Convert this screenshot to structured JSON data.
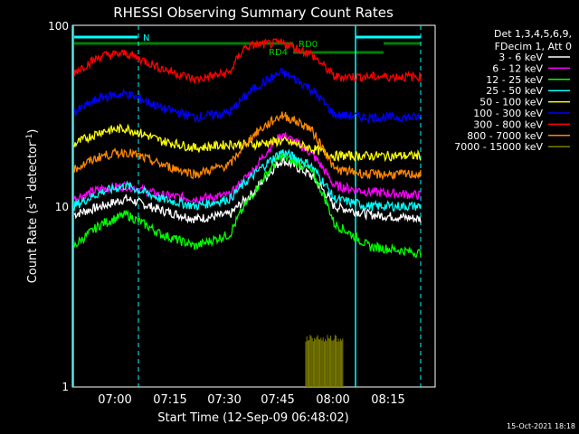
{
  "chart_data": {
    "type": "line",
    "title": "RHESSI Observing Summary Count Rates",
    "xlabel": "Start Time (12-Sep-09 06:48:02)",
    "ylabel": "Count Rate (s⁻¹ detector⁻¹)",
    "ylabel_main": "Count Rate (s",
    "ylabel_sup1": "-1",
    "ylabel_mid": " detector",
    "ylabel_sup2": "-1",
    "ylabel_end": ")",
    "yscale": "log",
    "ylim": [
      1,
      100
    ],
    "xlim": [
      "06:48:02",
      "08:30:00"
    ],
    "x_ticks": [
      "07:00",
      "07:15",
      "07:30",
      "07:45",
      "08:00",
      "08:15"
    ],
    "y_ticks": [
      "1",
      "10",
      "100"
    ],
    "footer_date": "15-Oct-2021 18:18",
    "legend": {
      "header1": "Det 1,3,4,5,6,9,",
      "header2": "FDecim 1, Att 0",
      "placement": "right"
    },
    "annotations": {
      "night_label": "N",
      "rd0_label": "RD0",
      "rd4_label": "RD4"
    },
    "series": [
      {
        "name": "3 - 6 keV",
        "color": "#ffffff",
        "values": [
          [
            0,
            9
          ],
          [
            8,
            10
          ],
          [
            15,
            11
          ],
          [
            25,
            9.5
          ],
          [
            35,
            8.5
          ],
          [
            45,
            9
          ],
          [
            52,
            12
          ],
          [
            60,
            18
          ],
          [
            68,
            15
          ],
          [
            75,
            10
          ],
          [
            85,
            9
          ],
          [
            100,
            8.5
          ]
        ]
      },
      {
        "name": "6 - 12 keV",
        "color": "#ff00ff",
        "values": [
          [
            0,
            11
          ],
          [
            8,
            12.5
          ],
          [
            15,
            13
          ],
          [
            25,
            11.5
          ],
          [
            35,
            11
          ],
          [
            45,
            11.5
          ],
          [
            52,
            16
          ],
          [
            60,
            25
          ],
          [
            68,
            20
          ],
          [
            75,
            13
          ],
          [
            85,
            12
          ],
          [
            100,
            11.5
          ]
        ]
      },
      {
        "name": "12 - 25 keV",
        "color": "#00ff00",
        "values": [
          [
            0,
            6
          ],
          [
            8,
            8
          ],
          [
            15,
            9
          ],
          [
            25,
            7
          ],
          [
            35,
            6
          ],
          [
            45,
            7
          ],
          [
            52,
            12
          ],
          [
            60,
            19
          ],
          [
            68,
            16
          ],
          [
            75,
            8
          ],
          [
            85,
            6
          ],
          [
            100,
            5.5
          ]
        ]
      },
      {
        "name": "25 - 50 keV",
        "color": "#00ffff",
        "values": [
          [
            0,
            10
          ],
          [
            8,
            12
          ],
          [
            15,
            13
          ],
          [
            25,
            11
          ],
          [
            35,
            10
          ],
          [
            45,
            11
          ],
          [
            52,
            15
          ],
          [
            60,
            20
          ],
          [
            68,
            17
          ],
          [
            75,
            11
          ],
          [
            85,
            10
          ],
          [
            100,
            10
          ]
        ]
      },
      {
        "name": "50 - 100 keV",
        "color": "#ffff00",
        "values": [
          [
            0,
            22
          ],
          [
            8,
            26
          ],
          [
            15,
            27
          ],
          [
            25,
            23
          ],
          [
            35,
            21
          ],
          [
            45,
            22
          ],
          [
            52,
            22
          ],
          [
            60,
            23
          ],
          [
            68,
            21
          ],
          [
            75,
            19
          ],
          [
            85,
            19
          ],
          [
            100,
            19
          ]
        ]
      },
      {
        "name": "100 - 300 keV",
        "color": "#0000ff",
        "values": [
          [
            0,
            33
          ],
          [
            8,
            40
          ],
          [
            15,
            42
          ],
          [
            25,
            35
          ],
          [
            35,
            31
          ],
          [
            45,
            33
          ],
          [
            52,
            45
          ],
          [
            60,
            55
          ],
          [
            68,
            45
          ],
          [
            75,
            32
          ],
          [
            85,
            31
          ],
          [
            100,
            31
          ]
        ]
      },
      {
        "name": "300 - 800 keV",
        "color": "#ff0000",
        "values": [
          [
            0,
            55
          ],
          [
            8,
            68
          ],
          [
            15,
            70
          ],
          [
            25,
            58
          ],
          [
            35,
            50
          ],
          [
            45,
            55
          ],
          [
            49,
            75
          ],
          [
            52,
            78
          ],
          [
            60,
            80
          ],
          [
            68,
            70
          ],
          [
            75,
            52
          ],
          [
            85,
            52
          ],
          [
            100,
            52
          ]
        ]
      },
      {
        "name": "800 - 7000 keV",
        "color": "#ff8800",
        "values": [
          [
            0,
            16
          ],
          [
            8,
            19
          ],
          [
            15,
            20
          ],
          [
            25,
            17
          ],
          [
            35,
            15
          ],
          [
            45,
            17
          ],
          [
            52,
            25
          ],
          [
            60,
            32
          ],
          [
            68,
            27
          ],
          [
            75,
            16
          ],
          [
            85,
            15
          ],
          [
            100,
            15
          ]
        ]
      },
      {
        "name": "7000 - 15000 keV",
        "color": "#808000",
        "values": [
          [
            64,
            1.9
          ],
          [
            66,
            1.9
          ],
          [
            68,
            1.9
          ],
          [
            70,
            1.9
          ]
        ]
      }
    ]
  }
}
